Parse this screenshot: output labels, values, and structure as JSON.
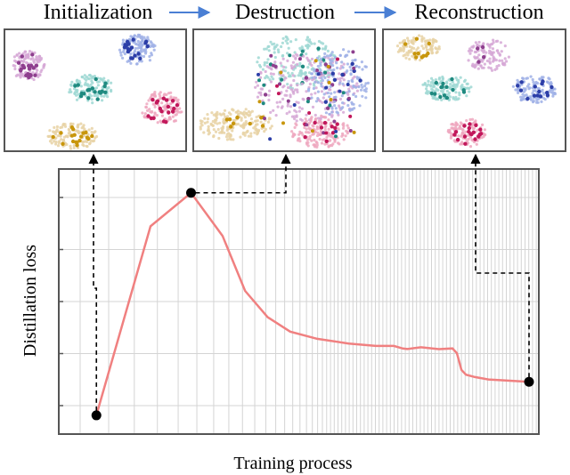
{
  "stages": [
    {
      "label": "Initialization"
    },
    {
      "label": "Destruction"
    },
    {
      "label": "Reconstruction"
    }
  ],
  "colors": {
    "loss_line": "#f08080",
    "frame": "#555555",
    "grid": "#d4d4d4",
    "arrow": "#4a7fd4",
    "marker": "#000000",
    "clusters": [
      "#8e3f8e",
      "#2c3ea8",
      "#1f8a80",
      "#c2185b",
      "#c8960c"
    ],
    "clusters_light": [
      "#d6a8d6",
      "#9fb0e6",
      "#9fd8d4",
      "#efa8c0",
      "#e8d2a4"
    ]
  },
  "chart_data": {
    "type": "line",
    "title": "",
    "xlabel": "Training process",
    "ylabel": "Distillation loss",
    "grid": true,
    "x_scale": "log-like (gridlines get denser toward the right)",
    "xlim": [
      0,
      1
    ],
    "ylim": [
      0,
      1
    ],
    "series": [
      {
        "x": [
          0.04,
          0.16,
          0.25,
          0.32,
          0.37,
          0.42,
          0.47,
          0.53,
          0.6,
          0.66,
          0.7,
          0.72,
          0.73,
          0.76,
          0.8,
          0.83,
          0.84,
          0.85,
          0.86,
          0.88,
          0.91,
          1.0
        ],
        "y": [
          0.03,
          0.82,
          0.96,
          0.78,
          0.55,
          0.44,
          0.38,
          0.35,
          0.33,
          0.32,
          0.32,
          0.31,
          0.31,
          0.31,
          0.31,
          0.31,
          0.29,
          0.22,
          0.2,
          0.19,
          0.18,
          0.17
        ]
      }
    ],
    "highlighted_points": [
      {
        "stage": "Initialization",
        "x": 0.04,
        "y": 0.03
      },
      {
        "stage": "Destruction",
        "x": 0.25,
        "y": 0.96
      },
      {
        "stage": "Reconstruction",
        "x": 1.0,
        "y": 0.17
      }
    ]
  }
}
